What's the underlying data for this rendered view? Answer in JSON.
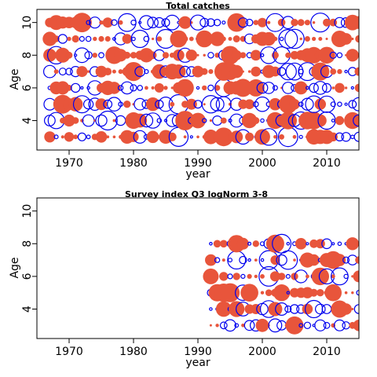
{
  "colors": {
    "positive": "#e8553b",
    "negative": "#0000ee",
    "frame": "#000000"
  },
  "chart_data": [
    {
      "type": "bubble",
      "title": "Total catches",
      "xlabel": "year",
      "ylabel": "Age",
      "xlim": [
        1965,
        2015
      ],
      "ylim": [
        2.2,
        10.8
      ],
      "xticks": [
        "1970",
        "1980",
        "1990",
        "2000",
        "2010"
      ],
      "yticks": [
        "4",
        "6",
        "8",
        "10"
      ],
      "year_range": [
        1967,
        2015
      ],
      "ages": [
        3,
        4,
        5,
        6,
        7,
        8,
        9,
        10
      ],
      "grid": false,
      "legend": "none"
    },
    {
      "type": "bubble",
      "title": "Survey index Q3 logNorm 3-8",
      "xlabel": "year",
      "ylabel": "Age",
      "xlim": [
        1965,
        2015
      ],
      "ylim": [
        2.2,
        10.8
      ],
      "xticks": [
        "1970",
        "1980",
        "1990",
        "2000",
        "2010"
      ],
      "yticks": [
        "4",
        "6",
        "8",
        "10"
      ],
      "year_range": [
        1992,
        2015
      ],
      "ages": [
        3,
        4,
        5,
        6,
        7,
        8
      ],
      "grid": false,
      "legend": "none"
    }
  ]
}
